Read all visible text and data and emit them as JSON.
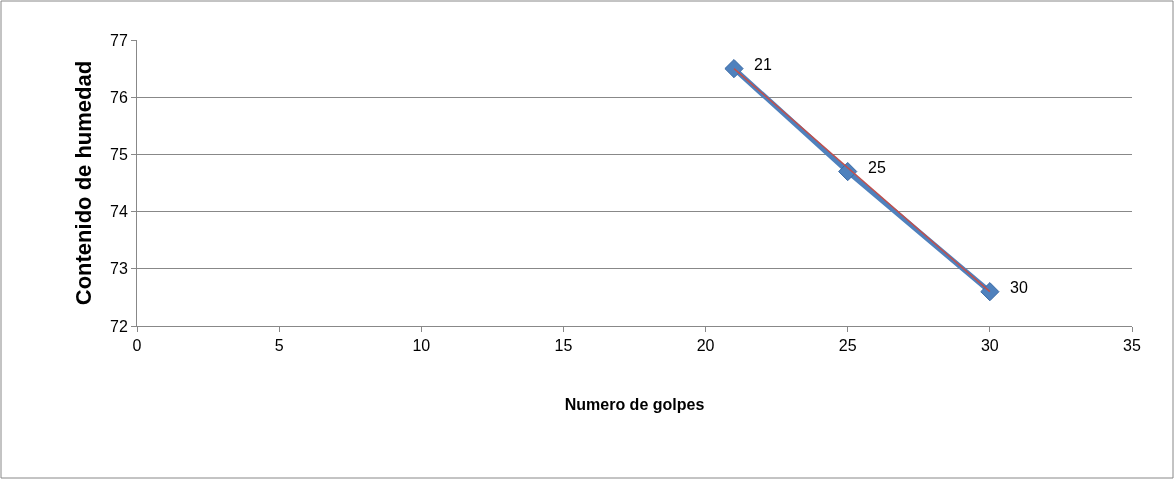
{
  "chart_data": {
    "type": "line",
    "xlabel": "Numero de golpes",
    "ylabel": "Contenido de humedad",
    "xlim": [
      0,
      35
    ],
    "xticks": [
      0,
      5,
      10,
      15,
      20,
      25,
      30,
      35
    ],
    "ylim": [
      72,
      77
    ],
    "yticks": [
      72,
      73,
      74,
      75,
      76,
      77
    ],
    "grid": "y",
    "marker": "diamond",
    "line_style": "solid",
    "series": [
      {
        "color": "#4f81bd",
        "x": [
          21,
          25,
          30
        ],
        "values": [
          76.5,
          74.7,
          72.6
        ]
      },
      {
        "type": "line",
        "color": "#c0504d",
        "x": [
          21,
          30
        ],
        "values": [
          76.5,
          72.6
        ],
        "marker": "none"
      }
    ],
    "annotations": [
      {
        "text": "21",
        "x": 21,
        "y": 76.5
      },
      {
        "text": "25",
        "x": 25,
        "y": 74.7
      },
      {
        "text": "30",
        "x": 30,
        "y": 72.6
      }
    ]
  }
}
